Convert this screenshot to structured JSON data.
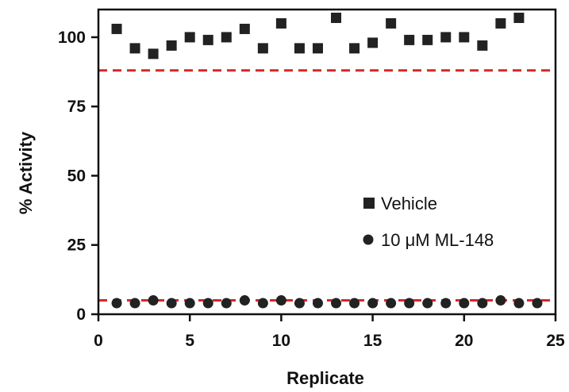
{
  "chart_data": {
    "type": "scatter",
    "title": "",
    "xlabel": "Replicate",
    "ylabel": "% Activity",
    "xlim": [
      0,
      25
    ],
    "ylim": [
      0,
      110
    ],
    "x_ticks": [
      0,
      5,
      10,
      15,
      20,
      25
    ],
    "y_ticks": [
      0,
      25,
      50,
      75,
      100
    ],
    "grid": false,
    "legend": "center-right",
    "series": [
      {
        "name": "Vehicle",
        "marker": "square",
        "color": "#222222",
        "x": [
          1,
          2,
          3,
          4,
          5,
          6,
          7,
          8,
          9,
          10,
          11,
          12,
          13,
          14,
          15,
          16,
          17,
          18,
          19,
          20,
          21,
          22,
          23
        ],
        "y": [
          103,
          96,
          94,
          97,
          100,
          99,
          100,
          103,
          96,
          105,
          96,
          96,
          107,
          96,
          98,
          105,
          99,
          99,
          100,
          100,
          97,
          105,
          107
        ]
      },
      {
        "name": "10 μM ML-148",
        "marker": "circle",
        "color": "#222222",
        "x": [
          1,
          2,
          3,
          4,
          5,
          6,
          7,
          8,
          9,
          10,
          11,
          12,
          13,
          14,
          15,
          16,
          17,
          18,
          19,
          20,
          21,
          22,
          23,
          24
        ],
        "y": [
          4,
          4,
          5,
          4,
          4,
          4,
          4,
          5,
          4,
          5,
          4,
          4,
          4,
          4,
          4,
          4,
          4,
          4,
          4,
          4,
          4,
          5,
          4,
          4
        ]
      }
    ],
    "reference_lines": [
      {
        "y": 88,
        "color": "#d62728",
        "style": "dashed"
      },
      {
        "y": 5,
        "color": "#d62728",
        "style": "dashed"
      }
    ]
  }
}
